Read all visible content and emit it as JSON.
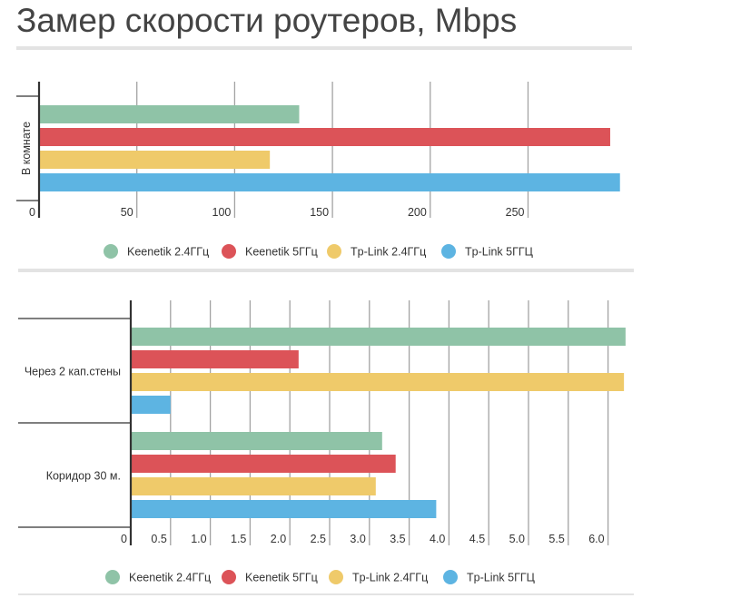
{
  "title": "Замер скорости роутеров, Mbps",
  "colors": {
    "Keenetik 2.4ГГц": "#8fc3a7",
    "Keenetik 5ГГц": "#dc5358",
    "Tp-Link 2.4ГГц": "#efca6a",
    "Tp-Link 5ГГЦ": "#5db4e2"
  },
  "chart_data": [
    {
      "type": "bar",
      "orientation": "horizontal",
      "categories": [
        "В комнате"
      ],
      "series": [
        {
          "name": "Keenetik 2.4ГГц",
          "values": [
            133
          ]
        },
        {
          "name": "Keenetik 5ГГц",
          "values": [
            292
          ]
        },
        {
          "name": "Tp-Link 2.4ГГц",
          "values": [
            118
          ]
        },
        {
          "name": "Tp-Link 5ГГЦ",
          "values": [
            297
          ]
        }
      ],
      "xlim": [
        0,
        300
      ],
      "ticks": [
        "0",
        "50",
        "100",
        "150",
        "200",
        "250"
      ],
      "tick_values": [
        0,
        50,
        100,
        150,
        200,
        250
      ],
      "grid": true,
      "legend": "bottom"
    },
    {
      "type": "bar",
      "orientation": "horizontal",
      "categories": [
        "Через 2 кап.стены",
        "Коридор 30 м."
      ],
      "series": [
        {
          "name": "Keenetik 2.4ГГц",
          "values": [
            6.22,
            3.16
          ]
        },
        {
          "name": "Keenetik 5ГГц",
          "values": [
            2.11,
            3.33
          ]
        },
        {
          "name": "Tp-Link 2.4ГГц",
          "values": [
            6.2,
            3.08
          ]
        },
        {
          "name": "Tp-Link 5ГГЦ",
          "values": [
            0.5,
            3.84
          ]
        }
      ],
      "xlim": [
        0,
        6.25
      ],
      "ticks": [
        "0",
        "0.5",
        "1.0",
        "1.5",
        "2.0",
        "2.5",
        "3.0",
        "3.5",
        "4.0",
        "4.5",
        "5.0",
        "5.5",
        "6.0"
      ],
      "tick_values": [
        0,
        0.5,
        1,
        1.5,
        2,
        2.5,
        3,
        3.5,
        4,
        4.5,
        5,
        5.5,
        6
      ],
      "grid": true,
      "legend": "bottom"
    }
  ]
}
